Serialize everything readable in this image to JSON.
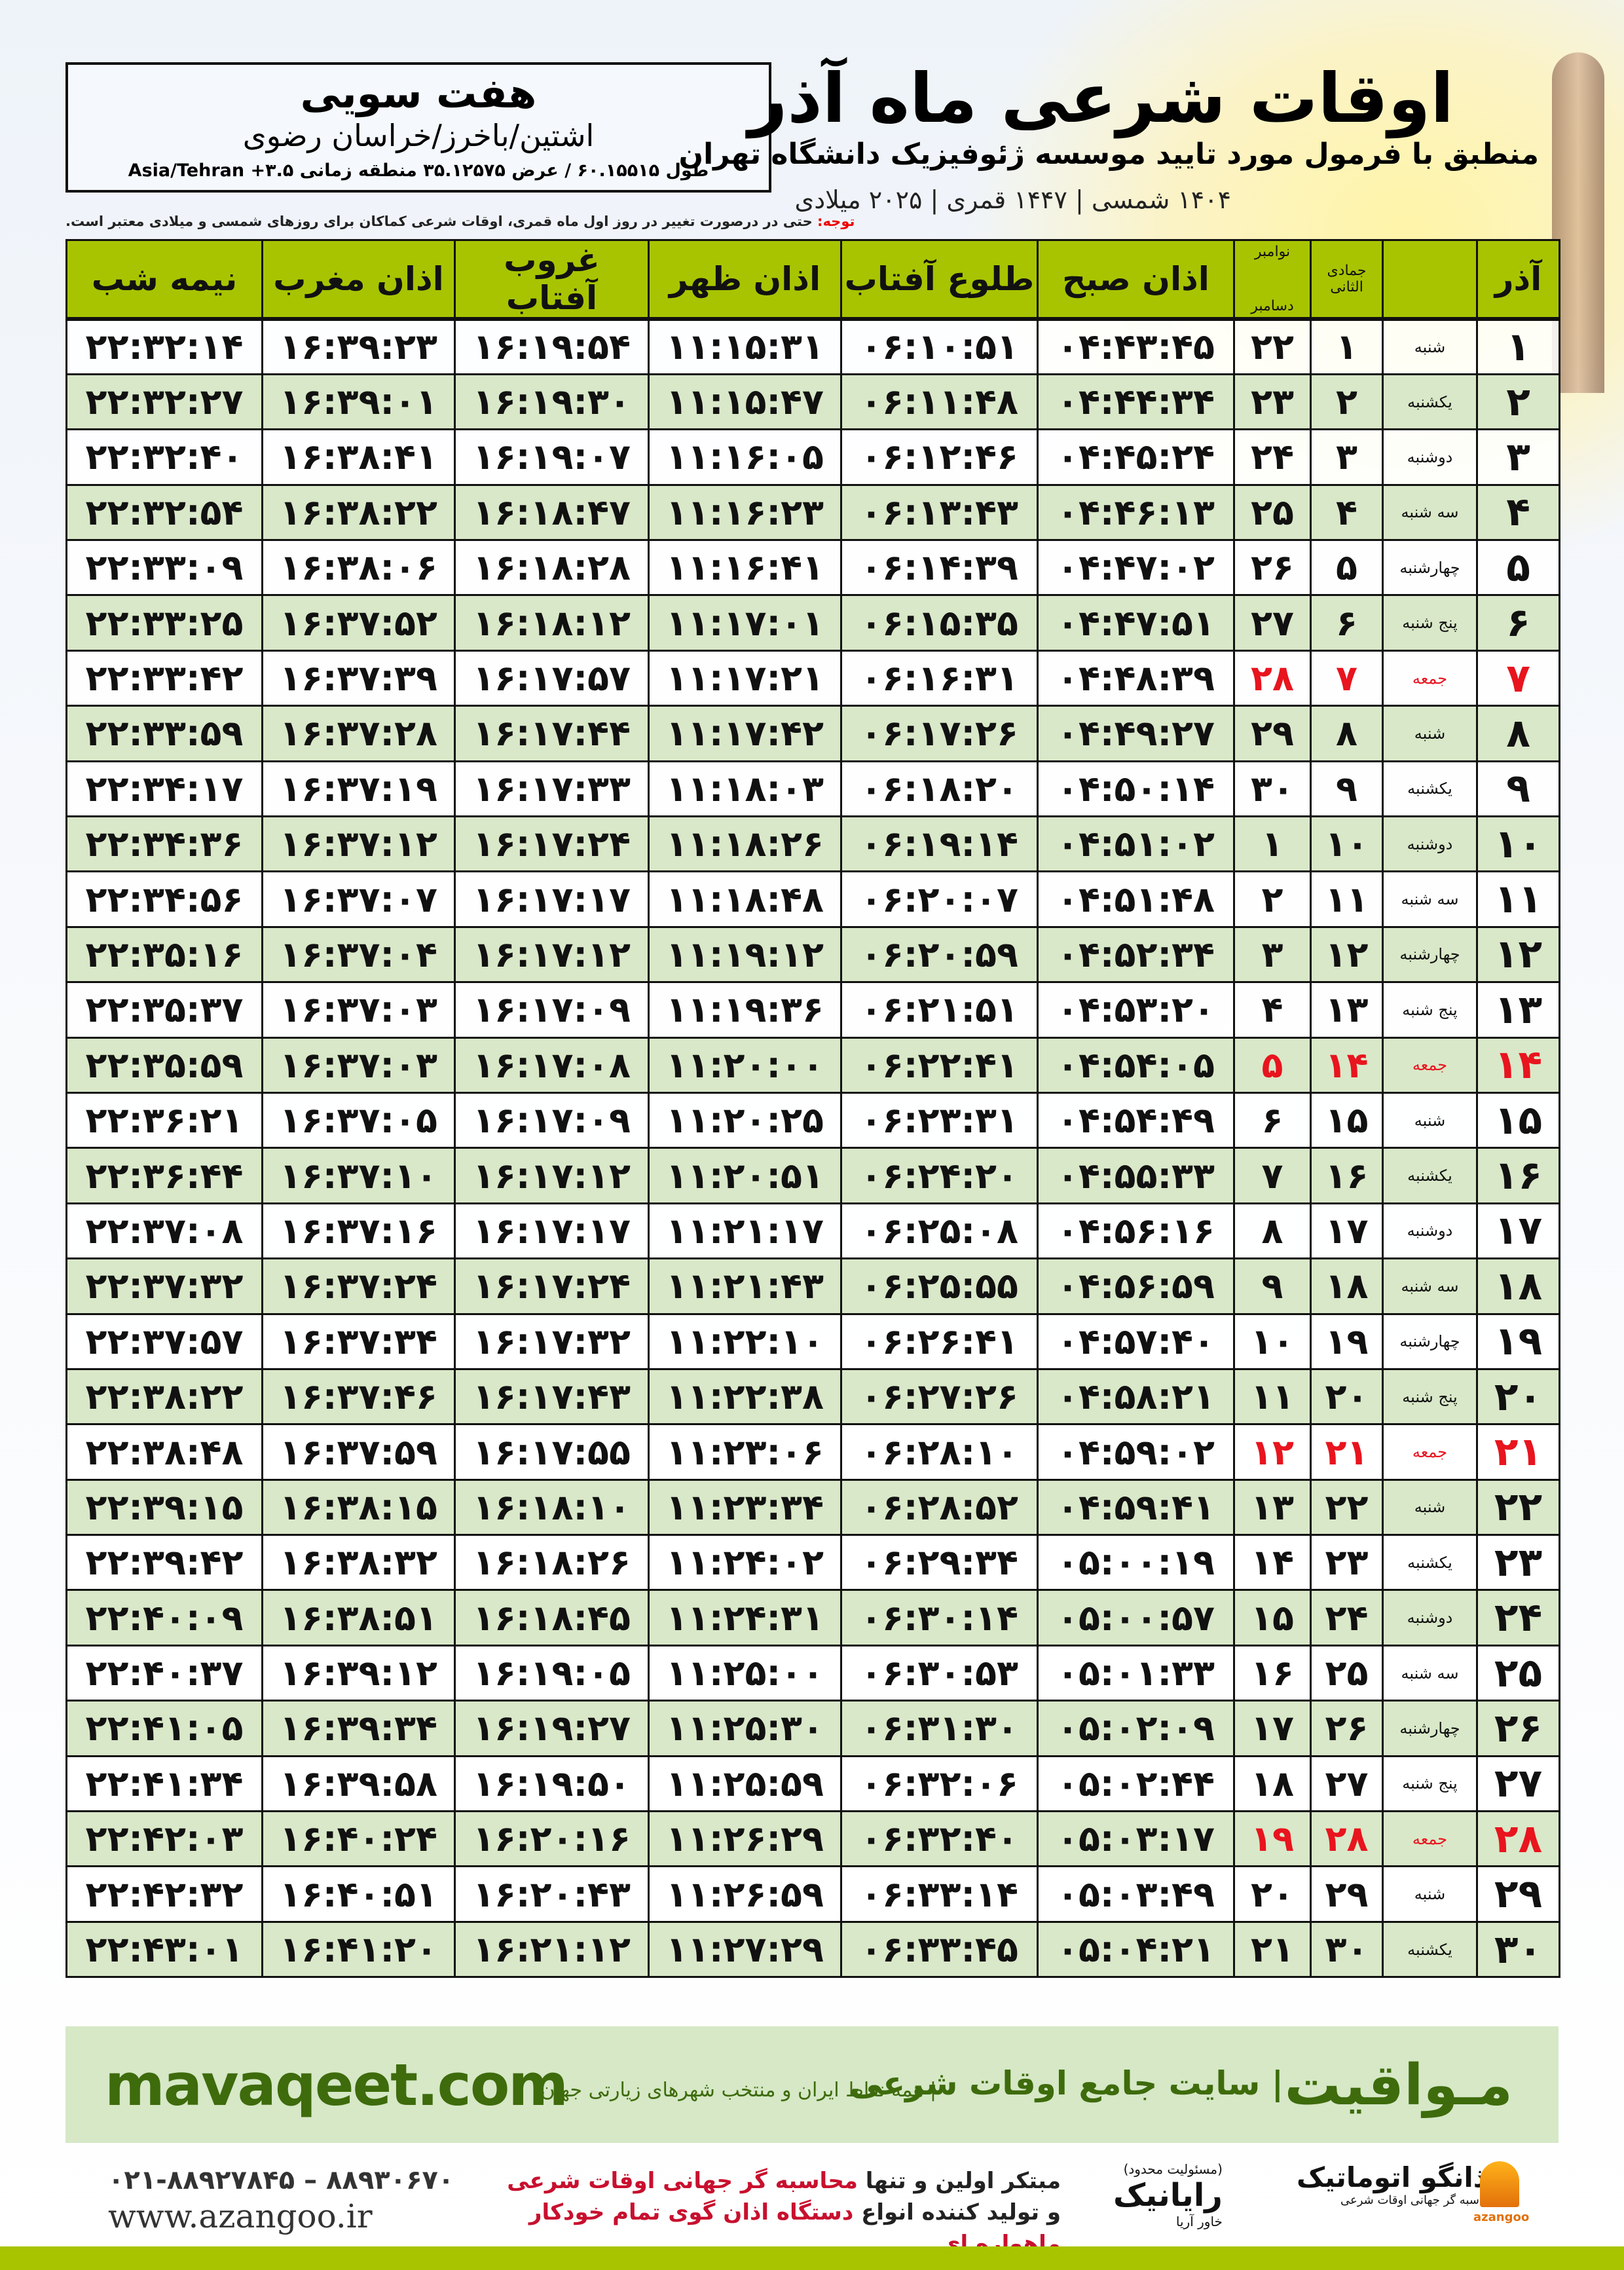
{
  "info": {
    "city": "هفت سویی",
    "region": "اشتین/باخرز/خراسان رضوی",
    "coords": "طول ۶۰.۱۵۵۱۵ / عرض ۳۵.۱۲۵۷۵ منطقه زمانی ۳.۵+ Asia/Tehran"
  },
  "header": {
    "title": "اوقات شرعی ماه آذر",
    "subtitle": "منطبق با فرمول مورد تایید موسسه ژئوفیزیک دانشگاه تهران",
    "dates": "۱۴۰۴ شمسی | ۱۴۴۷ قمری | ۲۰۲۵ میلادی"
  },
  "note": {
    "label": "توجه:",
    "text": " حتی در درصورت تغییر در روز اول ماه قمری، اوقات شرعی کماکان برای روزهای شمسی و میلادی معتبر است."
  },
  "table": {
    "headers": {
      "month": "آذر",
      "hijri": "جمادی الثانی",
      "greg_top": "نوامبر",
      "greg_bottom": "دسامبر",
      "fajr": "اذان صبح",
      "sunrise": "طلوع آفتاب",
      "dhuhr": "اذان ظهر",
      "sunset": "غروب آفتاب",
      "maghrib": "اذان مغرب",
      "midnight": "نیمه شب"
    },
    "friday_color": "#e8141e",
    "rows": [
      {
        "day": "۱",
        "weekday": "شنبه",
        "hijri": "۱",
        "greg": "۲۲",
        "times": [
          "۰۴:۴۳:۴۵",
          "۰۶:۱۰:۵۱",
          "۱۱:۱۵:۳۱",
          "۱۶:۱۹:۵۴",
          "۱۶:۳۹:۲۳",
          "۲۲:۳۲:۱۴"
        ]
      },
      {
        "day": "۲",
        "weekday": "یکشنبه",
        "hijri": "۲",
        "greg": "۲۳",
        "times": [
          "۰۴:۴۴:۳۴",
          "۰۶:۱۱:۴۸",
          "۱۱:۱۵:۴۷",
          "۱۶:۱۹:۳۰",
          "۱۶:۳۹:۰۱",
          "۲۲:۳۲:۲۷"
        ]
      },
      {
        "day": "۳",
        "weekday": "دوشنبه",
        "hijri": "۳",
        "greg": "۲۴",
        "times": [
          "۰۴:۴۵:۲۴",
          "۰۶:۱۲:۴۶",
          "۱۱:۱۶:۰۵",
          "۱۶:۱۹:۰۷",
          "۱۶:۳۸:۴۱",
          "۲۲:۳۲:۴۰"
        ]
      },
      {
        "day": "۴",
        "weekday": "سه شنبه",
        "hijri": "۴",
        "greg": "۲۵",
        "times": [
          "۰۴:۴۶:۱۳",
          "۰۶:۱۳:۴۳",
          "۱۱:۱۶:۲۳",
          "۱۶:۱۸:۴۷",
          "۱۶:۳۸:۲۲",
          "۲۲:۳۲:۵۴"
        ]
      },
      {
        "day": "۵",
        "weekday": "چهارشنبه",
        "hijri": "۵",
        "greg": "۲۶",
        "times": [
          "۰۴:۴۷:۰۲",
          "۰۶:۱۴:۳۹",
          "۱۱:۱۶:۴۱",
          "۱۶:۱۸:۲۸",
          "۱۶:۳۸:۰۶",
          "۲۲:۳۳:۰۹"
        ]
      },
      {
        "day": "۶",
        "weekday": "پنج شنبه",
        "hijri": "۶",
        "greg": "۲۷",
        "times": [
          "۰۴:۴۷:۵۱",
          "۰۶:۱۵:۳۵",
          "۱۱:۱۷:۰۱",
          "۱۶:۱۸:۱۲",
          "۱۶:۳۷:۵۲",
          "۲۲:۳۳:۲۵"
        ]
      },
      {
        "day": "۷",
        "weekday": "جمعه",
        "hijri": "۷",
        "greg": "۲۸",
        "holiday": true,
        "times": [
          "۰۴:۴۸:۳۹",
          "۰۶:۱۶:۳۱",
          "۱۱:۱۷:۲۱",
          "۱۶:۱۷:۵۷",
          "۱۶:۳۷:۳۹",
          "۲۲:۳۳:۴۲"
        ]
      },
      {
        "day": "۸",
        "weekday": "شنبه",
        "hijri": "۸",
        "greg": "۲۹",
        "times": [
          "۰۴:۴۹:۲۷",
          "۰۶:۱۷:۲۶",
          "۱۱:۱۷:۴۲",
          "۱۶:۱۷:۴۴",
          "۱۶:۳۷:۲۸",
          "۲۲:۳۳:۵۹"
        ]
      },
      {
        "day": "۹",
        "weekday": "یکشنبه",
        "hijri": "۹",
        "greg": "۳۰",
        "times": [
          "۰۴:۵۰:۱۴",
          "۰۶:۱۸:۲۰",
          "۱۱:۱۸:۰۳",
          "۱۶:۱۷:۳۳",
          "۱۶:۳۷:۱۹",
          "۲۲:۳۴:۱۷"
        ]
      },
      {
        "day": "۱۰",
        "weekday": "دوشنبه",
        "hijri": "۱۰",
        "greg": "۱",
        "times": [
          "۰۴:۵۱:۰۲",
          "۰۶:۱۹:۱۴",
          "۱۱:۱۸:۲۶",
          "۱۶:۱۷:۲۴",
          "۱۶:۳۷:۱۲",
          "۲۲:۳۴:۳۶"
        ]
      },
      {
        "day": "۱۱",
        "weekday": "سه شنبه",
        "hijri": "۱۱",
        "greg": "۲",
        "times": [
          "۰۴:۵۱:۴۸",
          "۰۶:۲۰:۰۷",
          "۱۱:۱۸:۴۸",
          "۱۶:۱۷:۱۷",
          "۱۶:۳۷:۰۷",
          "۲۲:۳۴:۵۶"
        ]
      },
      {
        "day": "۱۲",
        "weekday": "چهارشنبه",
        "hijri": "۱۲",
        "greg": "۳",
        "times": [
          "۰۴:۵۲:۳۴",
          "۰۶:۲۰:۵۹",
          "۱۱:۱۹:۱۲",
          "۱۶:۱۷:۱۲",
          "۱۶:۳۷:۰۴",
          "۲۲:۳۵:۱۶"
        ]
      },
      {
        "day": "۱۳",
        "weekday": "پنج شنبه",
        "hijri": "۱۳",
        "greg": "۴",
        "times": [
          "۰۴:۵۳:۲۰",
          "۰۶:۲۱:۵۱",
          "۱۱:۱۹:۳۶",
          "۱۶:۱۷:۰۹",
          "۱۶:۳۷:۰۳",
          "۲۲:۳۵:۳۷"
        ]
      },
      {
        "day": "۱۴",
        "weekday": "جمعه",
        "hijri": "۱۴",
        "greg": "۵",
        "holiday": true,
        "times": [
          "۰۴:۵۴:۰۵",
          "۰۶:۲۲:۴۱",
          "۱۱:۲۰:۰۰",
          "۱۶:۱۷:۰۸",
          "۱۶:۳۷:۰۳",
          "۲۲:۳۵:۵۹"
        ]
      },
      {
        "day": "۱۵",
        "weekday": "شنبه",
        "hijri": "۱۵",
        "greg": "۶",
        "times": [
          "۰۴:۵۴:۴۹",
          "۰۶:۲۳:۳۱",
          "۱۱:۲۰:۲۵",
          "۱۶:۱۷:۰۹",
          "۱۶:۳۷:۰۵",
          "۲۲:۳۶:۲۱"
        ]
      },
      {
        "day": "۱۶",
        "weekday": "یکشنبه",
        "hijri": "۱۶",
        "greg": "۷",
        "times": [
          "۰۴:۵۵:۳۳",
          "۰۶:۲۴:۲۰",
          "۱۱:۲۰:۵۱",
          "۱۶:۱۷:۱۲",
          "۱۶:۳۷:۱۰",
          "۲۲:۳۶:۴۴"
        ]
      },
      {
        "day": "۱۷",
        "weekday": "دوشنبه",
        "hijri": "۱۷",
        "greg": "۸",
        "times": [
          "۰۴:۵۶:۱۶",
          "۰۶:۲۵:۰۸",
          "۱۱:۲۱:۱۷",
          "۱۶:۱۷:۱۷",
          "۱۶:۳۷:۱۶",
          "۲۲:۳۷:۰۸"
        ]
      },
      {
        "day": "۱۸",
        "weekday": "سه شنبه",
        "hijri": "۱۸",
        "greg": "۹",
        "times": [
          "۰۴:۵۶:۵۹",
          "۰۶:۲۵:۵۵",
          "۱۱:۲۱:۴۳",
          "۱۶:۱۷:۲۴",
          "۱۶:۳۷:۲۴",
          "۲۲:۳۷:۳۲"
        ]
      },
      {
        "day": "۱۹",
        "weekday": "چهارشنبه",
        "hijri": "۱۹",
        "greg": "۱۰",
        "times": [
          "۰۴:۵۷:۴۰",
          "۰۶:۲۶:۴۱",
          "۱۱:۲۲:۱۰",
          "۱۶:۱۷:۳۲",
          "۱۶:۳۷:۳۴",
          "۲۲:۳۷:۵۷"
        ]
      },
      {
        "day": "۲۰",
        "weekday": "پنج شنبه",
        "hijri": "۲۰",
        "greg": "۱۱",
        "times": [
          "۰۴:۵۸:۲۱",
          "۰۶:۲۷:۲۶",
          "۱۱:۲۲:۳۸",
          "۱۶:۱۷:۴۳",
          "۱۶:۳۷:۴۶",
          "۲۲:۳۸:۲۲"
        ]
      },
      {
        "day": "۲۱",
        "weekday": "جمعه",
        "hijri": "۲۱",
        "greg": "۱۲",
        "holiday": true,
        "times": [
          "۰۴:۵۹:۰۲",
          "۰۶:۲۸:۱۰",
          "۱۱:۲۳:۰۶",
          "۱۶:۱۷:۵۵",
          "۱۶:۳۷:۵۹",
          "۲۲:۳۸:۴۸"
        ]
      },
      {
        "day": "۲۲",
        "weekday": "شنبه",
        "hijri": "۲۲",
        "greg": "۱۳",
        "times": [
          "۰۴:۵۹:۴۱",
          "۰۶:۲۸:۵۲",
          "۱۱:۲۳:۳۴",
          "۱۶:۱۸:۱۰",
          "۱۶:۳۸:۱۵",
          "۲۲:۳۹:۱۵"
        ]
      },
      {
        "day": "۲۳",
        "weekday": "یکشنبه",
        "hijri": "۲۳",
        "greg": "۱۴",
        "times": [
          "۰۵:۰۰:۱۹",
          "۰۶:۲۹:۳۴",
          "۱۱:۲۴:۰۲",
          "۱۶:۱۸:۲۶",
          "۱۶:۳۸:۳۲",
          "۲۲:۳۹:۴۲"
        ]
      },
      {
        "day": "۲۴",
        "weekday": "دوشنبه",
        "hijri": "۲۴",
        "greg": "۱۵",
        "times": [
          "۰۵:۰۰:۵۷",
          "۰۶:۳۰:۱۴",
          "۱۱:۲۴:۳۱",
          "۱۶:۱۸:۴۵",
          "۱۶:۳۸:۵۱",
          "۲۲:۴۰:۰۹"
        ]
      },
      {
        "day": "۲۵",
        "weekday": "سه شنبه",
        "hijri": "۲۵",
        "greg": "۱۶",
        "times": [
          "۰۵:۰۱:۳۳",
          "۰۶:۳۰:۵۳",
          "۱۱:۲۵:۰۰",
          "۱۶:۱۹:۰۵",
          "۱۶:۳۹:۱۲",
          "۲۲:۴۰:۳۷"
        ]
      },
      {
        "day": "۲۶",
        "weekday": "چهارشنبه",
        "hijri": "۲۶",
        "greg": "۱۷",
        "times": [
          "۰۵:۰۲:۰۹",
          "۰۶:۳۱:۳۰",
          "۱۱:۲۵:۳۰",
          "۱۶:۱۹:۲۷",
          "۱۶:۳۹:۳۴",
          "۲۲:۴۱:۰۵"
        ]
      },
      {
        "day": "۲۷",
        "weekday": "پنج شنبه",
        "hijri": "۲۷",
        "greg": "۱۸",
        "times": [
          "۰۵:۰۲:۴۴",
          "۰۶:۳۲:۰۶",
          "۱۱:۲۵:۵۹",
          "۱۶:۱۹:۵۰",
          "۱۶:۳۹:۵۸",
          "۲۲:۴۱:۳۴"
        ]
      },
      {
        "day": "۲۸",
        "weekday": "جمعه",
        "hijri": "۲۸",
        "greg": "۱۹",
        "holiday": true,
        "times": [
          "۰۵:۰۳:۱۷",
          "۰۶:۳۲:۴۰",
          "۱۱:۲۶:۲۹",
          "۱۶:۲۰:۱۶",
          "۱۶:۴۰:۲۴",
          "۲۲:۴۲:۰۳"
        ]
      },
      {
        "day": "۲۹",
        "weekday": "شنبه",
        "hijri": "۲۹",
        "greg": "۲۰",
        "times": [
          "۰۵:۰۳:۴۹",
          "۰۶:۳۳:۱۴",
          "۱۱:۲۶:۵۹",
          "۱۶:۲۰:۴۳",
          "۱۶:۴۰:۵۱",
          "۲۲:۴۲:۳۲"
        ]
      },
      {
        "day": "۳۰",
        "weekday": "یکشنبه",
        "hijri": "۳۰",
        "greg": "۲۱",
        "times": [
          "۰۵:۰۴:۲۱",
          "۰۶:۳۳:۴۵",
          "۱۱:۲۷:۲۹",
          "۱۶:۲۱:۱۲",
          "۱۶:۴۱:۲۰",
          "۲۲:۴۳:۰۱"
        ]
      }
    ]
  },
  "banner": {
    "brand": "مـواقیت",
    "tagline": "| سایت جامع اوقات شرعی",
    "subline": "| همه نقاط ایران و منتخب شهرهای زیارتی جهان",
    "url": "mavaqeet.com"
  },
  "footer": {
    "phone": "۰۲۱-۸۸۹۲۷۸۴۵ – ۸۸۹۳۰۶۷۰",
    "site": "www.azangoo.ir",
    "promo_line1_a": "مبتکر اولین و تنها ",
    "promo_line1_b": "محاسبه گر جهانی اوقات شرعی",
    "promo_line2_a": "و تولید کننده انواع ",
    "promo_line2_b": "دستگاه اذان گوی تمام خودکار ماهواره ای",
    "rayanik_note": "(مسئولیت محدود)",
    "rayanik_name": "رایانیک",
    "rayanik_sub": "خاور آریا",
    "azangoo_name": "اذانگو اتوماتیک",
    "azangoo_sub": "محاسبه گر جهانی اوقات شرعی",
    "azangoo_logo": "azangoo"
  },
  "colors": {
    "header_green": "#a8c400",
    "row_alt": "#d9e8c8",
    "banner": "#d6e8c6",
    "brand_green": "#3e6b0c",
    "red": "#e8141e"
  }
}
